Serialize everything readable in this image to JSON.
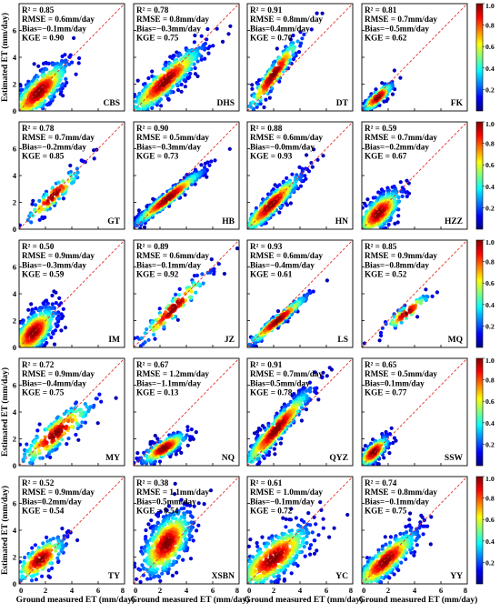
{
  "figure": {
    "ylabel": "Estimated ET (mm/day)",
    "xlabel": "Ground measured ET (mm/day)",
    "tick_values": [
      "0",
      "2",
      "4",
      "6",
      "8"
    ],
    "colorbar_ticks": [
      "1.0",
      "0.8",
      "0.6",
      "0.4",
      "0.2"
    ],
    "colormap": [
      "#00007f",
      "#0000ff",
      "#007fff",
      "#00ffff",
      "#7fff7f",
      "#ffff00",
      "#ff7f00",
      "#ff0000",
      "#7f0000"
    ],
    "one_to_one_line_color": "#e0302b"
  },
  "chart_data": [
    {
      "type": "scatter",
      "site": "CBS",
      "r2": "R² = 0.85",
      "rmse": "RMSE = 0.6mm/day",
      "bias": "Bias=−0.1mm/day",
      "kge": "KGE = 0.90",
      "xlim": [
        0,
        8
      ],
      "ylim": [
        0,
        8
      ],
      "cloud": {
        "cx": 1.5,
        "cy": 1.4,
        "sx": 1.2,
        "sy": 1.2,
        "rho": 0.8,
        "n": 500
      }
    },
    {
      "type": "scatter",
      "site": "DHS",
      "r2": "R² = 0.78",
      "rmse": "RMSE = 0.8mm/day",
      "bias": "Bias=−0.3mm/day",
      "kge": "KGE = 0.75",
      "xlim": [
        0,
        8
      ],
      "ylim": [
        0,
        8
      ],
      "cloud": {
        "cx": 2.4,
        "cy": 2.2,
        "sx": 1.5,
        "sy": 1.4,
        "rho": 0.9,
        "n": 550
      }
    },
    {
      "type": "scatter",
      "site": "DT",
      "r2": "R² = 0.91",
      "rmse": "RMSE = 0.8mm/day",
      "bias": "Bias=0.4mm/day",
      "kge": "KGE = 0.70",
      "xlim": [
        0,
        8
      ],
      "ylim": [
        0,
        8
      ],
      "cloud": {
        "cx": 2.0,
        "cy": 2.7,
        "sx": 1.1,
        "sy": 1.5,
        "rho": 0.95,
        "n": 260
      }
    },
    {
      "type": "scatter",
      "site": "FK",
      "r2": "R² = 0.81",
      "rmse": "RMSE = 0.7mm/day",
      "bias": "Bias=−0.5mm/day",
      "kge": "KGE = 0.62",
      "xlim": [
        0,
        8
      ],
      "ylim": [
        0,
        8
      ],
      "cloud": {
        "cx": 1.2,
        "cy": 1.0,
        "sx": 0.6,
        "sy": 0.55,
        "rho": 0.85,
        "n": 180
      }
    },
    {
      "type": "scatter",
      "site": "GT",
      "r2": "R² = 0.78",
      "rmse": "RMSE = 0.7mm/day",
      "bias": "Bias=−0.2mm/day",
      "kge": "KGE = 0.85",
      "xlim": [
        0,
        8
      ],
      "ylim": [
        0,
        8
      ],
      "cloud": {
        "cx": 2.6,
        "cy": 2.5,
        "sx": 1.1,
        "sy": 1.1,
        "rho": 0.93,
        "n": 120
      }
    },
    {
      "type": "scatter",
      "site": "HB",
      "r2": "R² = 0.90",
      "rmse": "RMSE = 0.5mm/day",
      "bias": "Bias=−0.3mm/day",
      "kge": "KGE = 0.73",
      "xlim": [
        0,
        8
      ],
      "ylim": [
        0,
        8
      ],
      "cloud": {
        "cx": 2.6,
        "cy": 2.3,
        "sx": 1.4,
        "sy": 1.1,
        "rho": 0.97,
        "n": 520
      }
    },
    {
      "type": "scatter",
      "site": "HN",
      "r2": "R² = 0.88",
      "rmse": "RMSE = 0.6mm/day",
      "bias": "Bias=−0.0mm/day",
      "kge": "KGE = 0.93",
      "xlim": [
        0,
        8
      ],
      "ylim": [
        0,
        8
      ],
      "cloud": {
        "cx": 1.8,
        "cy": 1.8,
        "sx": 1.2,
        "sy": 1.2,
        "rho": 0.93,
        "n": 420
      }
    },
    {
      "type": "scatter",
      "site": "HZZ",
      "r2": "R² = 0.59",
      "rmse": "RMSE = 0.7mm/day",
      "bias": "Bias=−0.2mm/day",
      "kge": "KGE = 0.67",
      "xlim": [
        0,
        8
      ],
      "ylim": [
        0,
        8
      ],
      "cloud": {
        "cx": 1.3,
        "cy": 1.2,
        "sx": 0.9,
        "sy": 0.9,
        "rho": 0.7,
        "n": 420
      }
    },
    {
      "type": "scatter",
      "site": "IM",
      "r2": "R² = 0.50",
      "rmse": "RMSE = 0.9mm/day",
      "bias": "Bias=−0.3mm/day",
      "kge": "KGE = 0.59",
      "xlim": [
        0,
        8
      ],
      "ylim": [
        0,
        8
      ],
      "cloud": {
        "cx": 1.1,
        "cy": 1.1,
        "sx": 0.9,
        "sy": 1.0,
        "rho": 0.65,
        "n": 560
      }
    },
    {
      "type": "scatter",
      "site": "JZ",
      "r2": "R² = 0.89",
      "rmse": "RMSE = 0.6mm/day",
      "bias": "Bias=−0.1mm/day",
      "kge": "KGE = 0.92",
      "xlim": [
        0,
        8
      ],
      "ylim": [
        0,
        8
      ],
      "cloud": {
        "cx": 3.0,
        "cy": 2.9,
        "sx": 1.4,
        "sy": 1.4,
        "rho": 0.95,
        "n": 140
      }
    },
    {
      "type": "scatter",
      "site": "LS",
      "r2": "R² = 0.93",
      "rmse": "RMSE = 0.6mm/day",
      "bias": "Bias=−0.4mm/day",
      "kge": "KGE = 0.61",
      "xlim": [
        0,
        8
      ],
      "ylim": [
        0,
        8
      ],
      "cloud": {
        "cx": 2.3,
        "cy": 2.0,
        "sx": 1.2,
        "sy": 1.0,
        "rho": 0.97,
        "n": 260
      }
    },
    {
      "type": "scatter",
      "site": "MQ",
      "r2": "R² = 0.85",
      "rmse": "RMSE = 0.9mm/day",
      "bias": "Bias=−0.8mm/day",
      "kge": "KGE = 0.52",
      "xlim": [
        0,
        8
      ],
      "ylim": [
        0,
        8
      ],
      "cloud": {
        "cx": 3.4,
        "cy": 2.6,
        "sx": 0.9,
        "sy": 0.7,
        "rho": 0.9,
        "n": 80
      }
    },
    {
      "type": "scatter",
      "site": "MY",
      "r2": "R² = 0.72",
      "rmse": "RMSE = 0.9mm/day",
      "bias": "Bias=−0.4mm/day",
      "kge": "KGE = 0.75",
      "xlim": [
        0,
        8
      ],
      "ylim": [
        0,
        8
      ],
      "cloud": {
        "cx": 2.8,
        "cy": 2.4,
        "sx": 1.5,
        "sy": 1.3,
        "rho": 0.88,
        "n": 220
      }
    },
    {
      "type": "scatter",
      "site": "NQ",
      "r2": "R² = 0.67",
      "rmse": "RMSE = 1.2mm/day",
      "bias": "Bias=−1.1mm/day",
      "kge": "KGE = 0.13",
      "xlim": [
        0,
        8
      ],
      "ylim": [
        0,
        8
      ],
      "cloud": {
        "cx": 2.3,
        "cy": 1.3,
        "sx": 0.9,
        "sy": 0.6,
        "rho": 0.8,
        "n": 260
      }
    },
    {
      "type": "scatter",
      "site": "QYZ",
      "r2": "R² = 0.91",
      "rmse": "RMSE = 0.7mm/day",
      "bias": "Bias=0.5mm/day",
      "kge": "KGE = 0.78",
      "xlim": [
        0,
        8
      ],
      "ylim": [
        0,
        8
      ],
      "cloud": {
        "cx": 2.2,
        "cy": 2.7,
        "sx": 1.4,
        "sy": 1.6,
        "rho": 0.95,
        "n": 560
      }
    },
    {
      "type": "scatter",
      "site": "SSW",
      "r2": "R² = 0.65",
      "rmse": "RMSE = 0.5mm/day",
      "bias": "Bias=0.1mm/day",
      "kge": "KGE = 0.77",
      "xlim": [
        0,
        8
      ],
      "ylim": [
        0,
        8
      ],
      "cloud": {
        "cx": 0.9,
        "cy": 1.0,
        "sx": 0.6,
        "sy": 0.6,
        "rho": 0.75,
        "n": 260
      }
    },
    {
      "type": "scatter",
      "site": "TY",
      "r2": "R² = 0.52",
      "rmse": "RMSE = 0.9mm/day",
      "bias": "Bias=0.2mm/day",
      "kge": "KGE = 0.54",
      "xlim": [
        0,
        8
      ],
      "ylim": [
        0,
        8
      ],
      "cloud": {
        "cx": 1.6,
        "cy": 1.8,
        "sx": 1.0,
        "sy": 0.9,
        "rho": 0.72,
        "n": 230
      }
    },
    {
      "type": "scatter",
      "site": "XSBN",
      "r2": "R² = 0.38",
      "rmse": "RMSE = 1.1mm/day",
      "bias": "Bias=0.5mm/day",
      "kge": "KGE = 0.54",
      "xlim": [
        0,
        8
      ],
      "ylim": [
        0,
        8
      ],
      "cloud": {
        "cx": 2.5,
        "cy": 3.0,
        "sx": 1.0,
        "sy": 1.3,
        "rho": 0.55,
        "n": 560
      }
    },
    {
      "type": "scatter",
      "site": "YC",
      "r2": "R² = 0.61",
      "rmse": "RMSE = 1.0mm/day",
      "bias": "Bias=−0.1mm/day",
      "kge": "KGE = 0.72",
      "xlim": [
        0,
        8
      ],
      "ylim": [
        0,
        8
      ],
      "cloud": {
        "cx": 2.0,
        "cy": 1.9,
        "sx": 1.5,
        "sy": 1.3,
        "rho": 0.75,
        "n": 520
      }
    },
    {
      "type": "scatter",
      "site": "YY",
      "r2": "R² = 0.74",
      "rmse": "RMSE = 0.8mm/day",
      "bias": "Bias=−0.1mm/day",
      "kge": "KGE = 0.75",
      "xlim": [
        0,
        8
      ],
      "ylim": [
        0,
        8
      ],
      "cloud": {
        "cx": 1.8,
        "cy": 1.7,
        "sx": 1.3,
        "sy": 1.2,
        "rho": 0.85,
        "n": 460
      }
    }
  ]
}
